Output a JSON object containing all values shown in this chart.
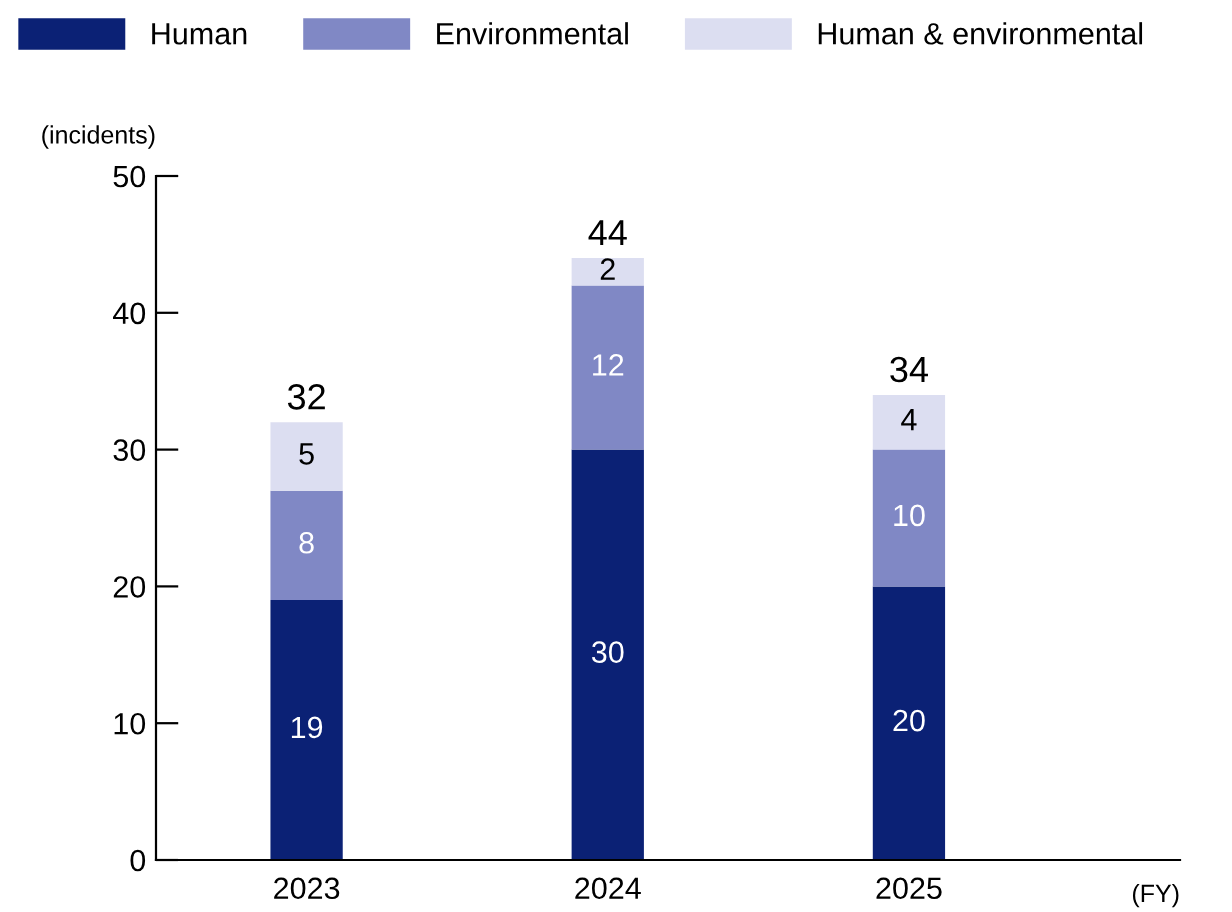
{
  "chart_data": {
    "type": "bar",
    "stacked": true,
    "ylabel": "(incidents)",
    "xlabel": "(FY)",
    "categories": [
      "2023",
      "2024",
      "2025"
    ],
    "series": [
      {
        "name": "Human",
        "color": "#0b2175",
        "values": [
          19,
          30,
          20
        ]
      },
      {
        "name": "Environmental",
        "color": "#8088c5",
        "values": [
          8,
          12,
          10
        ]
      },
      {
        "name": "Human & environmental",
        "color": "#dcdef1",
        "values": [
          5,
          2,
          4
        ]
      }
    ],
    "ylim": [
      0,
      50
    ],
    "yticks": [
      0,
      10,
      20,
      30,
      40,
      50
    ],
    "data_labels": true,
    "totals": [
      "32",
      "44",
      "34"
    ],
    "grid": false,
    "legend": "top"
  }
}
